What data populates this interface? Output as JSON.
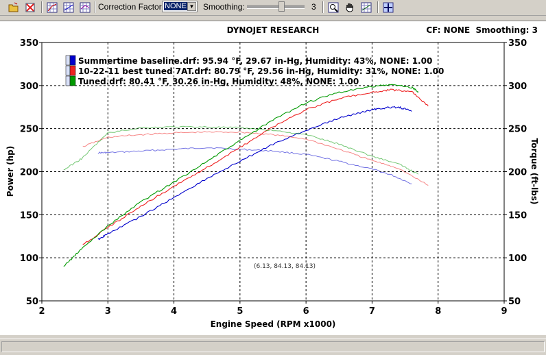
{
  "toolbar": {
    "icons": [
      "open-file-icon",
      "close-file-icon",
      "graph-icon",
      "graph-icon",
      "graph-icon",
      "zoom-icon",
      "hand-pan-icon",
      "graph-icon",
      "cursor-cross-icon"
    ],
    "correction_label": "Correction Factor:",
    "correction_value": "NONE",
    "smoothing_label": "Smoothing:",
    "smoothing_value": "3"
  },
  "chart_data": {
    "type": "line",
    "title": "DYNOJET RESEARCH",
    "header_right": "CF: NONE  Smoothing: 3",
    "xlabel": "Engine Speed (RPM x1000)",
    "ylabel": "Power (hp)",
    "y2label": "Torque (ft-lbs)",
    "xlim": [
      2,
      9
    ],
    "ylim": [
      50,
      350
    ],
    "xticks": [
      "2",
      "3",
      "4",
      "5",
      "6",
      "7",
      "8",
      "9"
    ],
    "yticks": [
      "50",
      "100",
      "150",
      "200",
      "250",
      "300",
      "350"
    ],
    "grid": true,
    "legend_position": "top-left",
    "cursor_readout": "(6.13, 84.13, 84.13)",
    "series": [
      {
        "name": "Summertime baseline.drf: 95.94 °F, 29.67 in-Hg, Humidity: 43%, NONE: 1.00",
        "color": "#0000cc",
        "power": [
          [
            2.85,
            121
          ],
          [
            3.0,
            128
          ],
          [
            3.5,
            148
          ],
          [
            4.0,
            170
          ],
          [
            4.5,
            192
          ],
          [
            5.0,
            212
          ],
          [
            5.5,
            232
          ],
          [
            6.0,
            248
          ],
          [
            6.5,
            262
          ],
          [
            7.0,
            272
          ],
          [
            7.2,
            274
          ],
          [
            7.4,
            275
          ],
          [
            7.6,
            270
          ]
        ],
        "torque": [
          [
            2.85,
            222
          ],
          [
            3.0,
            222
          ],
          [
            3.5,
            224
          ],
          [
            4.0,
            226
          ],
          [
            4.5,
            228
          ],
          [
            5.0,
            226
          ],
          [
            5.5,
            224
          ],
          [
            6.0,
            220
          ],
          [
            6.5,
            212
          ],
          [
            7.0,
            203
          ],
          [
            7.3,
            196
          ],
          [
            7.6,
            186
          ]
        ]
      },
      {
        "name": "10-22-11 best tuned 7AT.drf: 80.79 °F, 29.56 in-Hg, Humidity: 31%, NONE: 1.00",
        "color": "#ee2222",
        "power": [
          [
            2.62,
            115
          ],
          [
            3.0,
            135
          ],
          [
            3.5,
            160
          ],
          [
            4.0,
            183
          ],
          [
            4.5,
            205
          ],
          [
            5.0,
            228
          ],
          [
            5.5,
            252
          ],
          [
            6.0,
            272
          ],
          [
            6.5,
            285
          ],
          [
            7.0,
            292
          ],
          [
            7.3,
            295
          ],
          [
            7.6,
            293
          ],
          [
            7.85,
            276
          ]
        ],
        "torque": [
          [
            2.62,
            229
          ],
          [
            3.0,
            240
          ],
          [
            3.5,
            243
          ],
          [
            4.0,
            245
          ],
          [
            4.5,
            246
          ],
          [
            5.0,
            246
          ],
          [
            5.5,
            243
          ],
          [
            6.0,
            238
          ],
          [
            6.5,
            226
          ],
          [
            7.0,
            213
          ],
          [
            7.4,
            204
          ],
          [
            7.85,
            184
          ]
        ]
      },
      {
        "name": "Tuned.drf: 80.41 °F, 30.26 in-Hg, Humidity: 48%, NONE: 1.00",
        "color": "#009900",
        "power": [
          [
            2.33,
            90
          ],
          [
            2.6,
            110
          ],
          [
            3.0,
            137
          ],
          [
            3.5,
            165
          ],
          [
            4.0,
            188
          ],
          [
            4.5,
            212
          ],
          [
            5.0,
            236
          ],
          [
            5.5,
            260
          ],
          [
            6.0,
            280
          ],
          [
            6.5,
            292
          ],
          [
            7.0,
            299
          ],
          [
            7.3,
            301
          ],
          [
            7.6,
            298
          ],
          [
            7.7,
            293
          ]
        ],
        "torque": [
          [
            2.33,
            202
          ],
          [
            2.6,
            215
          ],
          [
            3.0,
            245
          ],
          [
            3.5,
            251
          ],
          [
            4.0,
            252
          ],
          [
            4.5,
            252
          ],
          [
            5.0,
            251
          ],
          [
            5.5,
            248
          ],
          [
            6.0,
            243
          ],
          [
            6.5,
            232
          ],
          [
            7.0,
            218
          ],
          [
            7.4,
            209
          ],
          [
            7.7,
            197
          ]
        ]
      }
    ]
  }
}
